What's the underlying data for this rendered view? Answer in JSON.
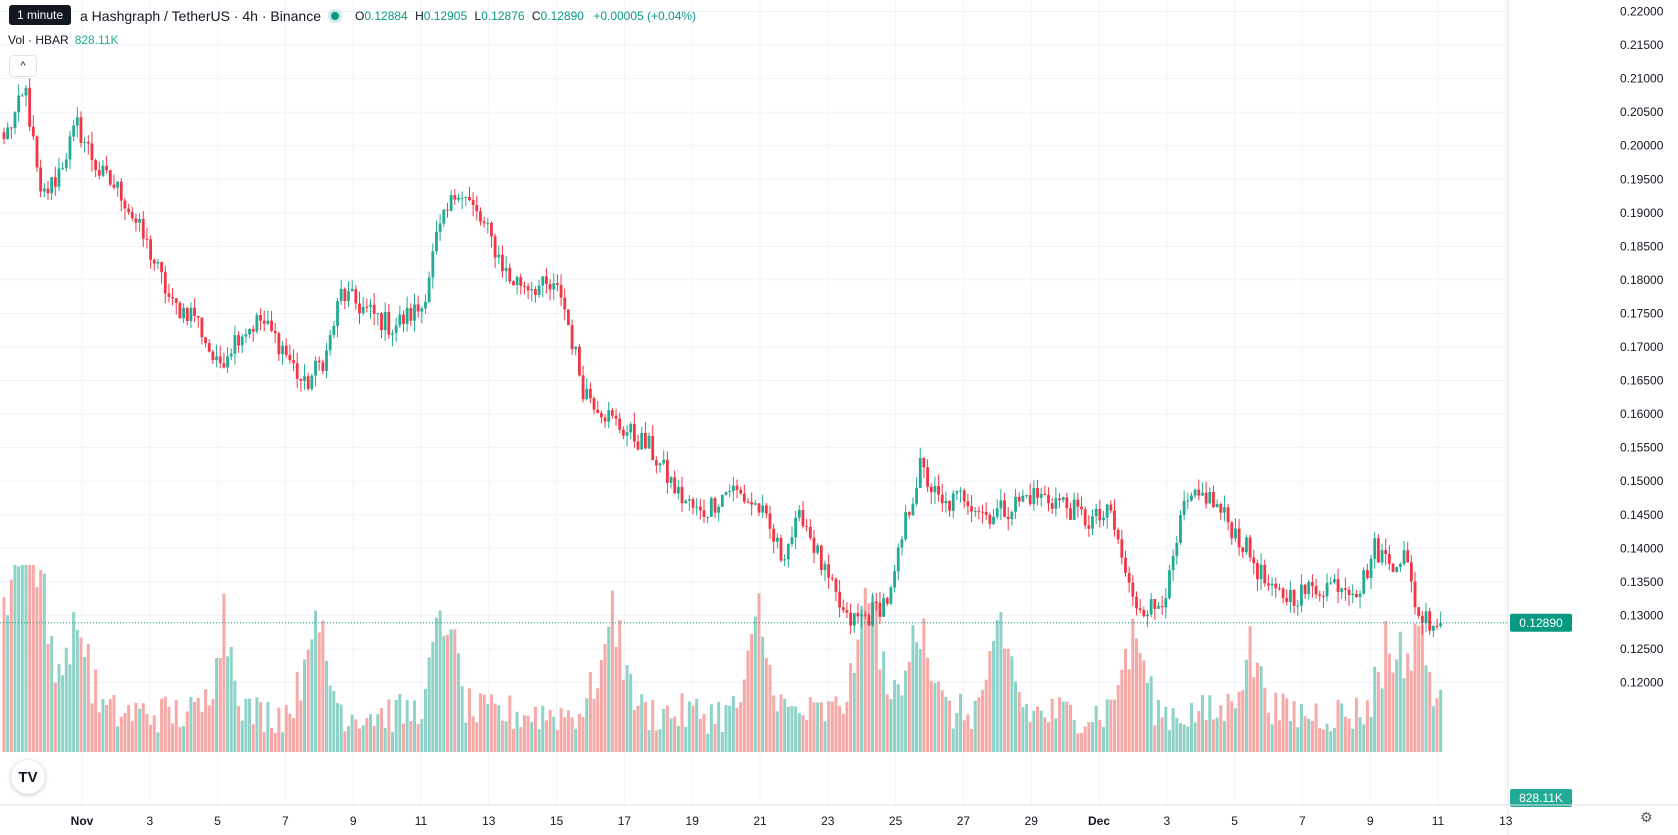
{
  "header": {
    "tooltip": "1 minute",
    "symbol": "a Hashgraph / TetherUS · 4h · Binance",
    "ohlc": {
      "o_label": "O",
      "o": "0.12884",
      "h_label": "H",
      "h": "0.12905",
      "l_label": "L",
      "l": "0.12876",
      "c_label": "C",
      "c": "0.12890",
      "change": "+0.00005 (+0.04%)"
    },
    "volume_label": "Vol · HBAR",
    "volume_value": "828.11K",
    "logo_icon": "tradingview-logo-icon",
    "settings_icon": "gear-icon"
  },
  "colors": {
    "up": "#22ab94",
    "down": "#f23645",
    "vol_up": "#8fd2c8",
    "vol_down": "#f7a9a7",
    "last_price": "#089981"
  },
  "chart_data": {
    "type": "candlestick",
    "price_labels": [
      "0.22000",
      "0.21500",
      "0.21000",
      "0.20500",
      "0.20000",
      "0.19500",
      "0.19000",
      "0.18500",
      "0.18000",
      "0.17500",
      "0.17000",
      "0.16500",
      "0.16000",
      "0.15500",
      "0.15000",
      "0.14500",
      "0.14000",
      "0.13500",
      "0.13000",
      "0.12500",
      "0.12000"
    ],
    "ylim": [
      0.1161,
      0.221
    ],
    "x_labels": [
      "Nov",
      "3",
      "5",
      "7",
      "9",
      "11",
      "13",
      "15",
      "17",
      "19",
      "21",
      "23",
      "25",
      "27",
      "29",
      "Dec",
      "3",
      "5",
      "7",
      "9",
      "11",
      "13"
    ],
    "last_price": "0.12890",
    "last_volume": "828.11K",
    "anchors": [
      [
        0,
        0.201
      ],
      [
        6,
        0.208
      ],
      [
        10,
        0.192
      ],
      [
        14,
        0.195
      ],
      [
        20,
        0.203
      ],
      [
        26,
        0.196
      ],
      [
        32,
        0.193
      ],
      [
        40,
        0.184
      ],
      [
        46,
        0.176
      ],
      [
        52,
        0.175
      ],
      [
        58,
        0.167
      ],
      [
        64,
        0.172
      ],
      [
        70,
        0.174
      ],
      [
        76,
        0.17
      ],
      [
        82,
        0.164
      ],
      [
        88,
        0.169
      ],
      [
        92,
        0.178
      ],
      [
        100,
        0.175
      ],
      [
        106,
        0.173
      ],
      [
        114,
        0.176
      ],
      [
        118,
        0.186
      ],
      [
        124,
        0.194
      ],
      [
        132,
        0.187
      ],
      [
        138,
        0.18
      ],
      [
        146,
        0.179
      ],
      [
        152,
        0.178
      ],
      [
        158,
        0.164
      ],
      [
        166,
        0.159
      ],
      [
        176,
        0.155
      ],
      [
        184,
        0.148
      ],
      [
        190,
        0.145
      ],
      [
        198,
        0.149
      ],
      [
        206,
        0.146
      ],
      [
        212,
        0.139
      ],
      [
        218,
        0.145
      ],
      [
        224,
        0.136
      ],
      [
        230,
        0.129
      ],
      [
        236,
        0.13
      ],
      [
        242,
        0.133
      ],
      [
        246,
        0.144
      ],
      [
        250,
        0.152
      ],
      [
        256,
        0.146
      ],
      [
        262,
        0.148
      ],
      [
        268,
        0.145
      ],
      [
        274,
        0.146
      ],
      [
        280,
        0.148
      ],
      [
        288,
        0.147
      ],
      [
        296,
        0.144
      ],
      [
        302,
        0.145
      ],
      [
        308,
        0.132
      ],
      [
        314,
        0.131
      ],
      [
        318,
        0.135
      ],
      [
        322,
        0.146
      ],
      [
        328,
        0.148
      ],
      [
        334,
        0.144
      ],
      [
        340,
        0.139
      ],
      [
        346,
        0.133
      ],
      [
        352,
        0.133
      ],
      [
        358,
        0.134
      ],
      [
        364,
        0.135
      ],
      [
        370,
        0.134
      ],
      [
        374,
        0.14
      ],
      [
        378,
        0.138
      ],
      [
        382,
        0.139
      ],
      [
        386,
        0.13
      ],
      [
        392,
        0.1289
      ]
    ],
    "volume_axis_max": 2.55,
    "volume_spikes": [
      [
        3,
        0.2,
        2.55
      ],
      [
        9,
        0.22,
        1.93
      ],
      [
        20,
        0.22,
        1.2
      ],
      [
        60,
        0.18,
        1.3
      ],
      [
        85,
        0.2,
        1.55
      ],
      [
        120,
        0.2,
        1.45
      ],
      [
        166,
        0.23,
        1.55
      ],
      [
        206,
        0.2,
        1.3
      ],
      [
        236,
        0.25,
        1.6
      ],
      [
        250,
        0.2,
        1.45
      ],
      [
        272,
        0.2,
        1.3
      ],
      [
        308,
        0.2,
        1.2
      ],
      [
        340,
        0.2,
        1.1
      ],
      [
        378,
        0.2,
        1.0
      ],
      [
        386,
        0.2,
        1.05
      ]
    ]
  }
}
